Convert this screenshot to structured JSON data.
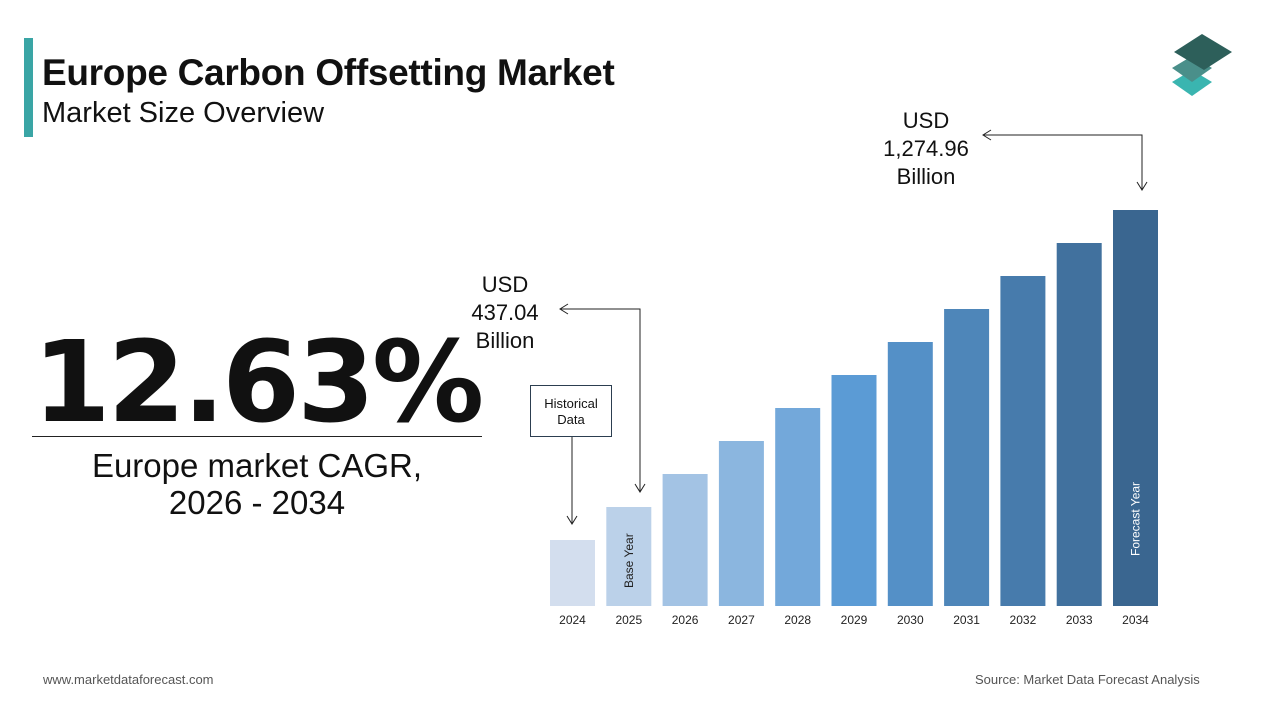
{
  "header": {
    "title": "Europe Carbon Offsetting Market",
    "subtitle": "Market Size Overview"
  },
  "cagr": {
    "value": "12.63%",
    "label_line1": "Europe market CAGR,",
    "label_line2": "2026 - 2034"
  },
  "annotations": {
    "start": {
      "line1": "USD",
      "line2": "437.04",
      "line3": "Billion"
    },
    "end": {
      "line1": "USD",
      "line2": "1,274.96",
      "line3": "Billion"
    },
    "historical": {
      "line1": "Historical",
      "line2": "Data"
    },
    "base_year": "Base Year",
    "forecast_year": "Forecast Year"
  },
  "footer": {
    "website": "www.marketdataforecast.com",
    "source": "Source: Market Data Forecast Analysis"
  },
  "colors": {
    "accent": "#3aa5a5",
    "bar_light": "#d3deee",
    "bar_mid": "#5b9bd5",
    "bar_dark": "#3a6690"
  },
  "logo": {
    "icon": "stacked-layers-icon"
  },
  "chart_data": {
    "type": "bar",
    "title": "",
    "xlabel": "",
    "ylabel": "",
    "categories": [
      "2024",
      "2025",
      "2026",
      "2027",
      "2028",
      "2029",
      "2030",
      "2031",
      "2032",
      "2033",
      "2034"
    ],
    "values": [
      null,
      437.04,
      null,
      null,
      null,
      null,
      null,
      null,
      null,
      null,
      1274.96
    ],
    "unit": "USD Billion",
    "grid": false,
    "legend": "none"
  }
}
